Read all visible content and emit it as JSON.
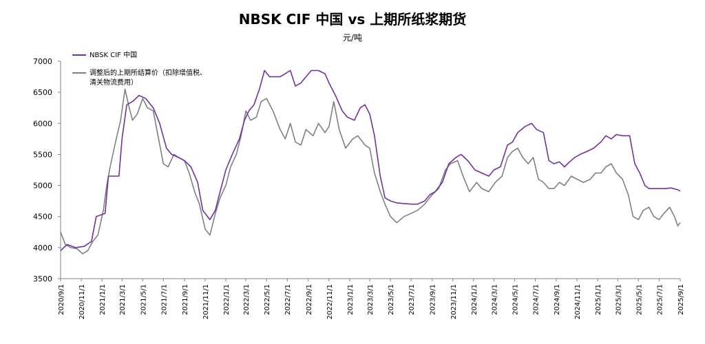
{
  "chart_data": {
    "type": "line",
    "title": "NBSK CIF 中国 vs 上期所纸浆期货",
    "ylabel": "元/吨",
    "ylim": [
      3500,
      7000
    ],
    "yticks": [
      3500,
      4000,
      4500,
      5000,
      5500,
      6000,
      6500,
      7000
    ],
    "xlim": [
      "2020/9/1",
      "2025/9/1"
    ],
    "xticks": [
      "2020/9/1",
      "2020/11/1",
      "2021/1/1",
      "2021/3/1",
      "2021/5/1",
      "2021/7/1",
      "2021/9/1",
      "2021/11/1",
      "2022/1/1",
      "2022/3/1",
      "2022/5/1",
      "2022/7/1",
      "2022/9/1",
      "2022/11/1",
      "2023/1/1",
      "2023/3/1",
      "2023/5/1",
      "2023/7/1",
      "2023/9/1",
      "2023/11/1",
      "2024/1/1",
      "2024/3/1",
      "2024/5/1",
      "2024/7/1",
      "2024/9/1",
      "2024/11/1",
      "2025/1/1",
      "2025/3/1",
      "2025/5/1",
      "2025/7/1",
      "2025/9/1"
    ],
    "grid": false,
    "legend_position": "top-left",
    "series": [
      {
        "name": "NBSK CIF 中国",
        "color": "#7030a0",
        "points": [
          [
            "2020/9/1",
            3950
          ],
          [
            "2020/9/20",
            4050
          ],
          [
            "2020/10/15",
            4000
          ],
          [
            "2020/11/10",
            4020
          ],
          [
            "2020/12/1",
            4100
          ],
          [
            "2020/12/15",
            4500
          ],
          [
            "2021/1/10",
            4550
          ],
          [
            "2021/1/20",
            5150
          ],
          [
            "2021/2/20",
            5150
          ],
          [
            "2021/3/1",
            5750
          ],
          [
            "2021/3/15",
            6300
          ],
          [
            "2021/4/1",
            6350
          ],
          [
            "2021/4/20",
            6450
          ],
          [
            "2021/5/10",
            6400
          ],
          [
            "2021/6/1",
            6250
          ],
          [
            "2021/6/20",
            6000
          ],
          [
            "2021/7/10",
            5600
          ],
          [
            "2021/7/25",
            5500
          ],
          [
            "2021/8/15",
            5450
          ],
          [
            "2021/9/1",
            5400
          ],
          [
            "2021/9/20",
            5300
          ],
          [
            "2021/10/10",
            5050
          ],
          [
            "2021/10/25",
            4600
          ],
          [
            "2021/11/15",
            4450
          ],
          [
            "2021/12/1",
            4600
          ],
          [
            "2021/12/15",
            4900
          ],
          [
            "2022/1/1",
            5250
          ],
          [
            "2022/1/20",
            5500
          ],
          [
            "2022/2/10",
            5750
          ],
          [
            "2022/2/25",
            6050
          ],
          [
            "2022/3/10",
            6200
          ],
          [
            "2022/3/25",
            6300
          ],
          [
            "2022/4/10",
            6550
          ],
          [
            "2022/4/25",
            6850
          ],
          [
            "2022/5/10",
            6750
          ],
          [
            "2022/6/10",
            6750
          ],
          [
            "2022/6/25",
            6800
          ],
          [
            "2022/7/10",
            6850
          ],
          [
            "2022/7/25",
            6600
          ],
          [
            "2022/8/10",
            6650
          ],
          [
            "2022/8/25",
            6750
          ],
          [
            "2022/9/10",
            6850
          ],
          [
            "2022/10/1",
            6850
          ],
          [
            "2022/10/20",
            6800
          ],
          [
            "2022/11/1",
            6650
          ],
          [
            "2022/11/20",
            6450
          ],
          [
            "2022/12/10",
            6200
          ],
          [
            "2022/12/25",
            6100
          ],
          [
            "2023/1/15",
            6050
          ],
          [
            "2023/2/1",
            6250
          ],
          [
            "2023/2/15",
            6300
          ],
          [
            "2023/3/1",
            6150
          ],
          [
            "2023/3/15",
            5800
          ],
          [
            "2023/4/1",
            5150
          ],
          [
            "2023/4/15",
            4800
          ],
          [
            "2023/5/1",
            4750
          ],
          [
            "2023/5/20",
            4720
          ],
          [
            "2023/7/1",
            4700
          ],
          [
            "2023/7/20",
            4700
          ],
          [
            "2023/8/10",
            4750
          ],
          [
            "2023/8/25",
            4850
          ],
          [
            "2023/9/10",
            4900
          ],
          [
            "2023/10/1",
            5050
          ],
          [
            "2023/10/20",
            5350
          ],
          [
            "2023/11/10",
            5450
          ],
          [
            "2023/11/25",
            5500
          ],
          [
            "2023/12/15",
            5400
          ],
          [
            "2024/1/5",
            5250
          ],
          [
            "2024/1/25",
            5200
          ],
          [
            "2024/2/15",
            5150
          ],
          [
            "2024/3/1",
            5250
          ],
          [
            "2024/3/20",
            5300
          ],
          [
            "2024/4/10",
            5650
          ],
          [
            "2024/4/25",
            5700
          ],
          [
            "2024/5/10",
            5850
          ],
          [
            "2024/6/1",
            5950
          ],
          [
            "2024/6/20",
            6000
          ],
          [
            "2024/7/5",
            5900
          ],
          [
            "2024/7/25",
            5850
          ],
          [
            "2024/8/10",
            5400
          ],
          [
            "2024/8/25",
            5350
          ],
          [
            "2024/9/10",
            5380
          ],
          [
            "2024/9/25",
            5300
          ],
          [
            "2024/10/10",
            5380
          ],
          [
            "2024/10/25",
            5450
          ],
          [
            "2024/11/10",
            5500
          ],
          [
            "2024/12/1",
            5550
          ],
          [
            "2024/12/20",
            5600
          ],
          [
            "2025/1/10",
            5700
          ],
          [
            "2025/1/25",
            5800
          ],
          [
            "2025/2/10",
            5750
          ],
          [
            "2025/2/25",
            5820
          ],
          [
            "2025/3/15",
            5800
          ],
          [
            "2025/4/5",
            5800
          ],
          [
            "2025/4/20",
            5350
          ],
          [
            "2025/5/5",
            5200
          ],
          [
            "2025/5/20",
            5000
          ],
          [
            "2025/6/1",
            4950
          ],
          [
            "2025/7/1",
            4950
          ],
          [
            "2025/7/20",
            4950
          ],
          [
            "2025/8/5",
            4960
          ],
          [
            "2025/8/25",
            4930
          ],
          [
            "2025/9/1",
            4910
          ]
        ]
      },
      {
        "name": "调整后的上期所结算价（扣除增值税、清关物流费用）",
        "color": "#7f7f7f",
        "points": [
          [
            "2020/9/1",
            4250
          ],
          [
            "2020/9/15",
            4050
          ],
          [
            "2020/10/1",
            4000
          ],
          [
            "2020/10/20",
            3980
          ],
          [
            "2020/11/5",
            3900
          ],
          [
            "2020/11/20",
            3950
          ],
          [
            "2020/12/5",
            4100
          ],
          [
            "2020/12/20",
            4200
          ],
          [
            "2021/1/5",
            4600
          ],
          [
            "2021/1/15",
            5000
          ],
          [
            "2021/1/25",
            5300
          ],
          [
            "2021/2/10",
            5700
          ],
          [
            "2021/2/25",
            6050
          ],
          [
            "2021/3/10",
            6550
          ],
          [
            "2021/3/20",
            6300
          ],
          [
            "2021/4/1",
            6050
          ],
          [
            "2021/4/15",
            6150
          ],
          [
            "2021/5/1",
            6400
          ],
          [
            "2021/5/15",
            6250
          ],
          [
            "2021/6/1",
            6200
          ],
          [
            "2021/6/15",
            5800
          ],
          [
            "2021/7/1",
            5350
          ],
          [
            "2021/7/15",
            5300
          ],
          [
            "2021/8/1",
            5500
          ],
          [
            "2021/8/15",
            5450
          ],
          [
            "2021/9/1",
            5400
          ],
          [
            "2021/9/15",
            5200
          ],
          [
            "2021/10/1",
            4900
          ],
          [
            "2021/10/15",
            4700
          ],
          [
            "2021/11/1",
            4300
          ],
          [
            "2021/11/15",
            4200
          ],
          [
            "2021/12/1",
            4550
          ],
          [
            "2021/12/15",
            4800
          ],
          [
            "2022/1/1",
            5000
          ],
          [
            "2022/1/15",
            5300
          ],
          [
            "2022/2/1",
            5500
          ],
          [
            "2022/2/15",
            5800
          ],
          [
            "2022/3/1",
            6200
          ],
          [
            "2022/3/15",
            6050
          ],
          [
            "2022/4/1",
            6100
          ],
          [
            "2022/4/15",
            6350
          ],
          [
            "2022/5/1",
            6400
          ],
          [
            "2022/5/20",
            6200
          ],
          [
            "2022/6/10",
            5900
          ],
          [
            "2022/6/25",
            5750
          ],
          [
            "2022/7/10",
            6000
          ],
          [
            "2022/7/25",
            5700
          ],
          [
            "2022/8/10",
            5650
          ],
          [
            "2022/8/25",
            5900
          ],
          [
            "2022/9/15",
            5800
          ],
          [
            "2022/10/1",
            6000
          ],
          [
            "2022/10/20",
            5850
          ],
          [
            "2022/11/1",
            5950
          ],
          [
            "2022/11/15",
            6350
          ],
          [
            "2022/12/1",
            5900
          ],
          [
            "2022/12/20",
            5600
          ],
          [
            "2023/1/10",
            5750
          ],
          [
            "2023/1/25",
            5800
          ],
          [
            "2023/2/15",
            5650
          ],
          [
            "2023/3/1",
            5600
          ],
          [
            "2023/3/15",
            5200
          ],
          [
            "2023/4/1",
            4900
          ],
          [
            "2023/4/15",
            4700
          ],
          [
            "2023/5/1",
            4500
          ],
          [
            "2023/5/20",
            4400
          ],
          [
            "2023/6/10",
            4500
          ],
          [
            "2023/7/1",
            4550
          ],
          [
            "2023/7/20",
            4600
          ],
          [
            "2023/8/10",
            4700
          ],
          [
            "2023/9/1",
            4850
          ],
          [
            "2023/9/20",
            4950
          ],
          [
            "2023/10/10",
            5250
          ],
          [
            "2023/10/25",
            5350
          ],
          [
            "2023/11/15",
            5400
          ],
          [
            "2023/12/1",
            5150
          ],
          [
            "2023/12/20",
            4900
          ],
          [
            "2024/1/10",
            5050
          ],
          [
            "2024/1/25",
            4950
          ],
          [
            "2024/2/15",
            4900
          ],
          [
            "2024/3/5",
            5050
          ],
          [
            "2024/3/25",
            5150
          ],
          [
            "2024/4/10",
            5450
          ],
          [
            "2024/4/25",
            5550
          ],
          [
            "2024/5/10",
            5600
          ],
          [
            "2024/5/25",
            5450
          ],
          [
            "2024/6/10",
            5350
          ],
          [
            "2024/6/25",
            5450
          ],
          [
            "2024/7/10",
            5100
          ],
          [
            "2024/7/25",
            5050
          ],
          [
            "2024/8/10",
            4950
          ],
          [
            "2024/8/25",
            4950
          ],
          [
            "2024/9/10",
            5050
          ],
          [
            "2024/9/25",
            5000
          ],
          [
            "2024/10/15",
            5150
          ],
          [
            "2024/11/1",
            5100
          ],
          [
            "2024/11/20",
            5050
          ],
          [
            "2024/12/10",
            5100
          ],
          [
            "2024/12/25",
            5200
          ],
          [
            "2025/1/10",
            5200
          ],
          [
            "2025/1/25",
            5300
          ],
          [
            "2025/2/10",
            5350
          ],
          [
            "2025/2/25",
            5200
          ],
          [
            "2025/3/15",
            5100
          ],
          [
            "2025/4/1",
            4850
          ],
          [
            "2025/4/15",
            4500
          ],
          [
            "2025/5/1",
            4450
          ],
          [
            "2025/5/15",
            4600
          ],
          [
            "2025/6/1",
            4650
          ],
          [
            "2025/6/15",
            4500
          ],
          [
            "2025/7/1",
            4450
          ],
          [
            "2025/7/15",
            4550
          ],
          [
            "2025/8/1",
            4650
          ],
          [
            "2025/8/15",
            4500
          ],
          [
            "2025/8/25",
            4350
          ],
          [
            "2025/9/1",
            4400
          ]
        ]
      }
    ]
  }
}
